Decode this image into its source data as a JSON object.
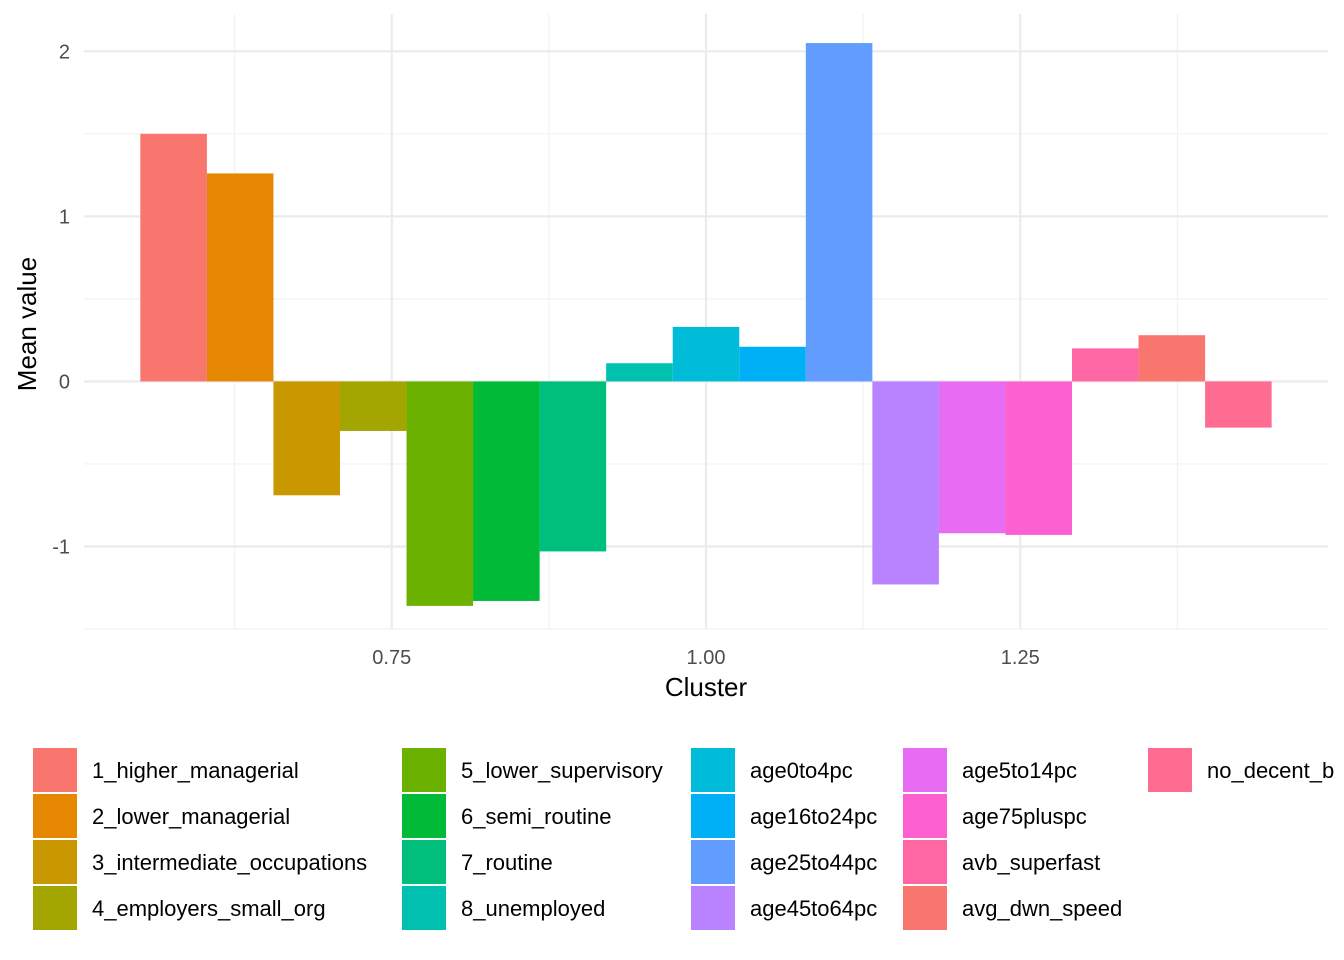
{
  "chart_data": {
    "type": "bar",
    "xlabel": "Cluster",
    "ylabel": "Mean value",
    "xlim": [
      0.5,
      1.5
    ],
    "ylim": [
      -1.5,
      2.1
    ],
    "x_ticks": [
      {
        "value": 0.75,
        "label": "0.75"
      },
      {
        "value": 1.0,
        "label": "1.00"
      },
      {
        "value": 1.25,
        "label": "1.25"
      }
    ],
    "y_ticks": [
      {
        "value": -1,
        "label": "-1"
      },
      {
        "value": 0,
        "label": "0"
      },
      {
        "value": 1,
        "label": "1"
      },
      {
        "value": 2,
        "label": "2"
      }
    ],
    "grid": true,
    "legend_position": "bottom",
    "series": [
      {
        "name": "1_higher_managerial",
        "value": 1.5,
        "color": "#F8766D"
      },
      {
        "name": "2_lower_managerial",
        "value": 1.26,
        "color": "#E58700"
      },
      {
        "name": "3_intermediate_occupations",
        "value": -0.69,
        "color": "#C99800"
      },
      {
        "name": "4_employers_small_org",
        "value": -0.3,
        "color": "#A3A500"
      },
      {
        "name": "5_lower_supervisory",
        "value": -1.36,
        "color": "#6BB100"
      },
      {
        "name": "6_semi_routine",
        "value": -1.33,
        "color": "#00BA38"
      },
      {
        "name": "7_routine",
        "value": -1.03,
        "color": "#00BF7D"
      },
      {
        "name": "8_unemployed",
        "value": 0.11,
        "color": "#00C0AF"
      },
      {
        "name": "age0to4pc",
        "value": 0.33,
        "color": "#00BCD8"
      },
      {
        "name": "age16to24pc",
        "value": 0.21,
        "color": "#00B0F6"
      },
      {
        "name": "age25to44pc",
        "value": 2.05,
        "color": "#619CFF"
      },
      {
        "name": "age45to64pc",
        "value": -1.23,
        "color": "#B983FF"
      },
      {
        "name": "age5to14pc",
        "value": -0.92,
        "color": "#E76BF3"
      },
      {
        "name": "age75pluspc",
        "value": -0.93,
        "color": "#FD61D1"
      },
      {
        "name": "avb_superfast",
        "value": 0.2,
        "color": "#FF67A4"
      },
      {
        "name": "avg_dwn_speed",
        "value": 0.28,
        "color": "#F8766D"
      },
      {
        "name": "no_decent_b",
        "value": -0.28,
        "color": "#FF6C91"
      }
    ]
  }
}
